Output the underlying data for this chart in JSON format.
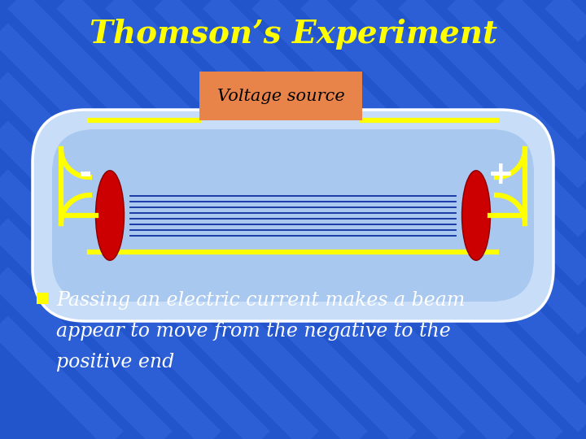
{
  "title": "Thomson’s Experiment",
  "title_color": "#FFFF00",
  "title_fontsize": 28,
  "bg_color": "#2255cc",
  "bg_stripe_color": "#3366dd",
  "voltage_box_color": "#e8844a",
  "voltage_box_text": "Voltage source",
  "voltage_box_text_color": "#000000",
  "tube_outer_color": "#c8ddf8",
  "tube_outer_border": "#ffffff",
  "tube_inner_color": "#a8c8f0",
  "tube_line_color": "#1030a0",
  "wire_color": "#ffff00",
  "electrode_color": "#cc0000",
  "minus_sign": "-",
  "plus_sign": "+",
  "sign_color": "#ffffff",
  "bullet_color": "#ffff00",
  "bullet_text_line1": "Passing an electric current makes a beam",
  "bullet_text_line2": "appear to move from the negative to the",
  "bullet_text_line3": "positive end",
  "bullet_text_color": "#ffffff",
  "bullet_fontsize": 17
}
